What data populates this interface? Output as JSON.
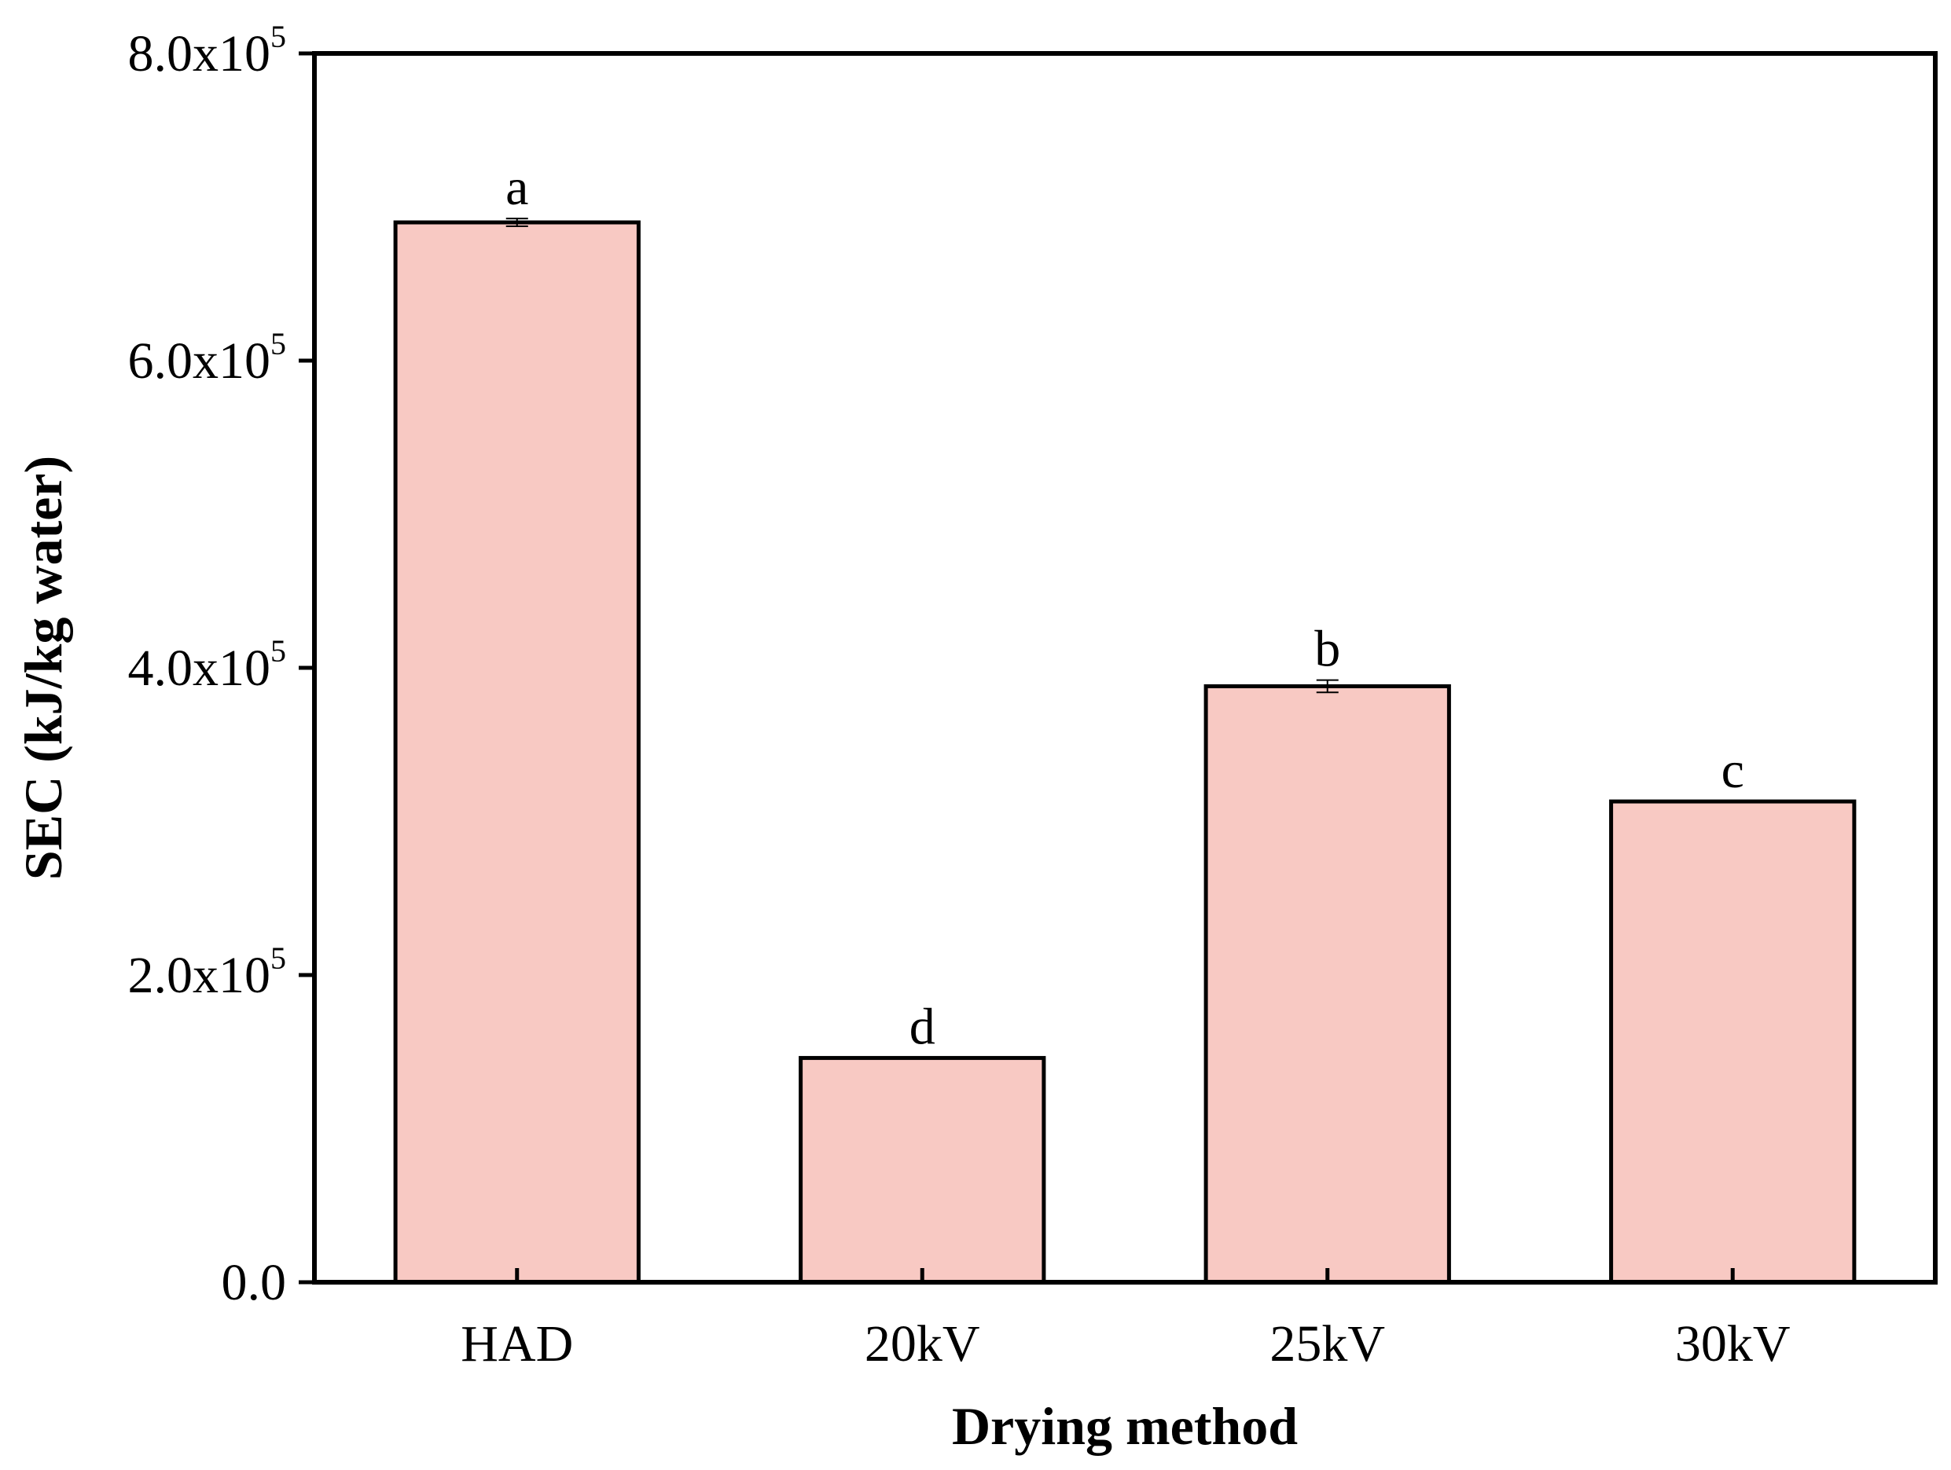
{
  "chart_data": {
    "type": "bar",
    "title": "",
    "xlabel": "Drying method",
    "ylabel": "SEC (kJ/kg water)",
    "categories": [
      "HAD",
      "20kV",
      "25kV",
      "30kV"
    ],
    "values": [
      690000,
      146000,
      388000,
      313000
    ],
    "errors": [
      2500,
      0,
      4000,
      0
    ],
    "significance_labels": [
      "a",
      "d",
      "b",
      "c"
    ],
    "ylim": [
      0,
      800000
    ],
    "y_ticks": [
      {
        "value": 0,
        "mantissa": "0.0",
        "exp_base": "",
        "exp": ""
      },
      {
        "value": 200000,
        "mantissa": "2.0",
        "exp_base": "x10",
        "exp": "5"
      },
      {
        "value": 400000,
        "mantissa": "4.0",
        "exp_base": "x10",
        "exp": "5"
      },
      {
        "value": 600000,
        "mantissa": "6.0",
        "exp_base": "x10",
        "exp": "5"
      },
      {
        "value": 800000,
        "mantissa": "8.0",
        "exp_base": "x10",
        "exp": "5"
      }
    ],
    "grid": false,
    "bar_color": "#f8c9c3",
    "edge_color": "#000000"
  }
}
